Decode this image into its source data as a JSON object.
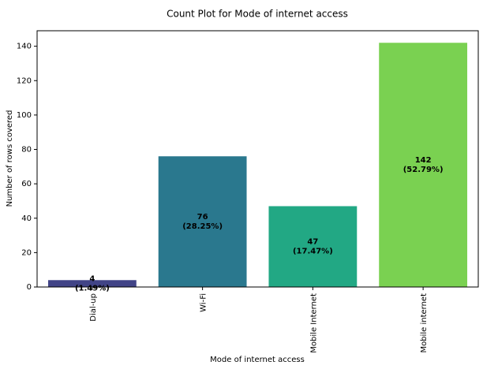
{
  "chart_data": {
    "type": "bar",
    "title": "Count Plot for Mode of internet access",
    "xlabel": "Mode of internet access",
    "ylabel": "Number of rows covered",
    "categories": [
      "Dial-up",
      "Wi-Fi",
      "Mobile Internet",
      "Mobile internet"
    ],
    "values": [
      4,
      76,
      47,
      142
    ],
    "data_labels": [
      {
        "count": "4",
        "percent": "(1.49%)"
      },
      {
        "count": "76",
        "percent": "(28.25%)"
      },
      {
        "count": "47",
        "percent": "(17.47%)"
      },
      {
        "count": "142",
        "percent": "(52.79%)"
      }
    ],
    "colors": [
      "#414487",
      "#2a788e",
      "#22a884",
      "#7ad151"
    ],
    "ylim": [
      0,
      149
    ],
    "yticks": [
      0,
      20,
      40,
      60,
      80,
      100,
      120,
      140
    ],
    "grid": false,
    "legend": "none"
  }
}
